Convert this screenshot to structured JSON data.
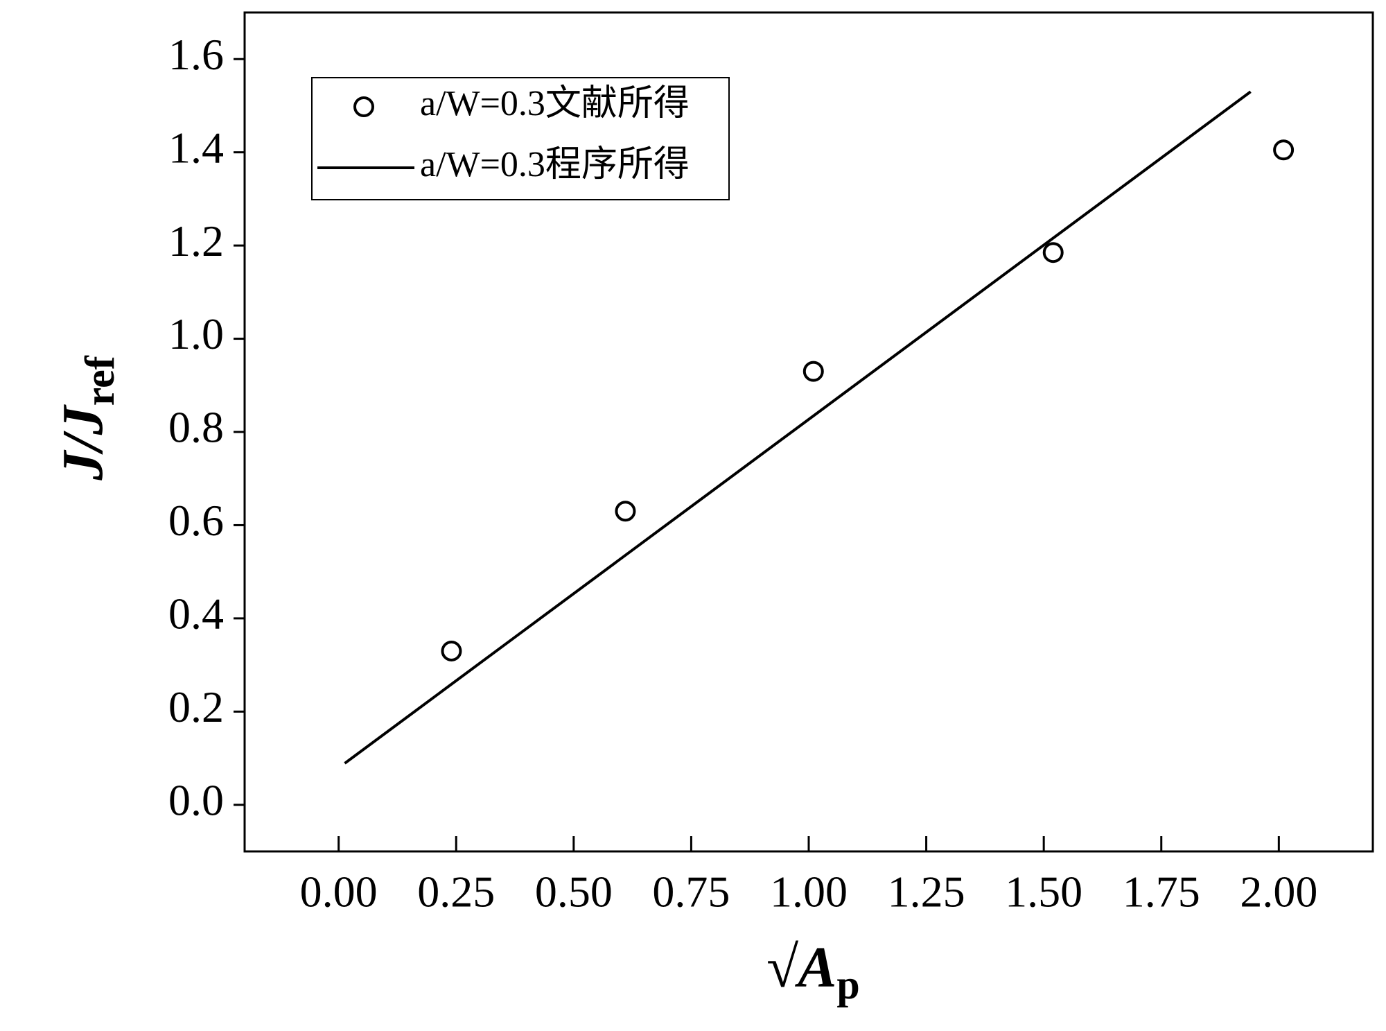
{
  "chart_data": {
    "type": "scatter",
    "xlabel": "√A",
    "xlabel_sub": "p",
    "ylabel": "J/J",
    "ylabel_sub": "ref",
    "xlim": [
      -0.2,
      2.2
    ],
    "xticks": [
      {
        "value": 0,
        "label": "0.00"
      },
      {
        "value": 0.25,
        "label": "0.25"
      },
      {
        "value": 0.5,
        "label": "0.50"
      },
      {
        "value": 0.75,
        "label": "0.75"
      },
      {
        "value": 1,
        "label": "1.00"
      },
      {
        "value": 1.25,
        "label": "1.25"
      },
      {
        "value": 1.5,
        "label": "1.50"
      },
      {
        "value": 1.75,
        "label": "1.75"
      },
      {
        "value": 2,
        "label": "2.00"
      }
    ],
    "ylim": [
      -0.1,
      1.7
    ],
    "yticks": [
      {
        "value": 0,
        "label": "0.0"
      },
      0.2,
      0.4,
      0.6,
      0.8,
      {
        "value": 1,
        "label": "1.0"
      },
      1.2,
      1.4,
      1.6
    ],
    "legend": "upper left",
    "series": [
      {
        "name": "a/W=0.3文献所得",
        "style": "marker",
        "color": "#000000",
        "x": [
          0.24,
          0.61,
          1.01,
          1.52,
          2.01
        ],
        "values": [
          0.33,
          0.63,
          0.93,
          1.185,
          1.405
        ]
      },
      {
        "name": "a/W=0.3程序所得",
        "style": "line",
        "color": "#000000",
        "x": [
          0.013,
          1.94
        ],
        "values": [
          0.089,
          1.53
        ]
      }
    ]
  }
}
